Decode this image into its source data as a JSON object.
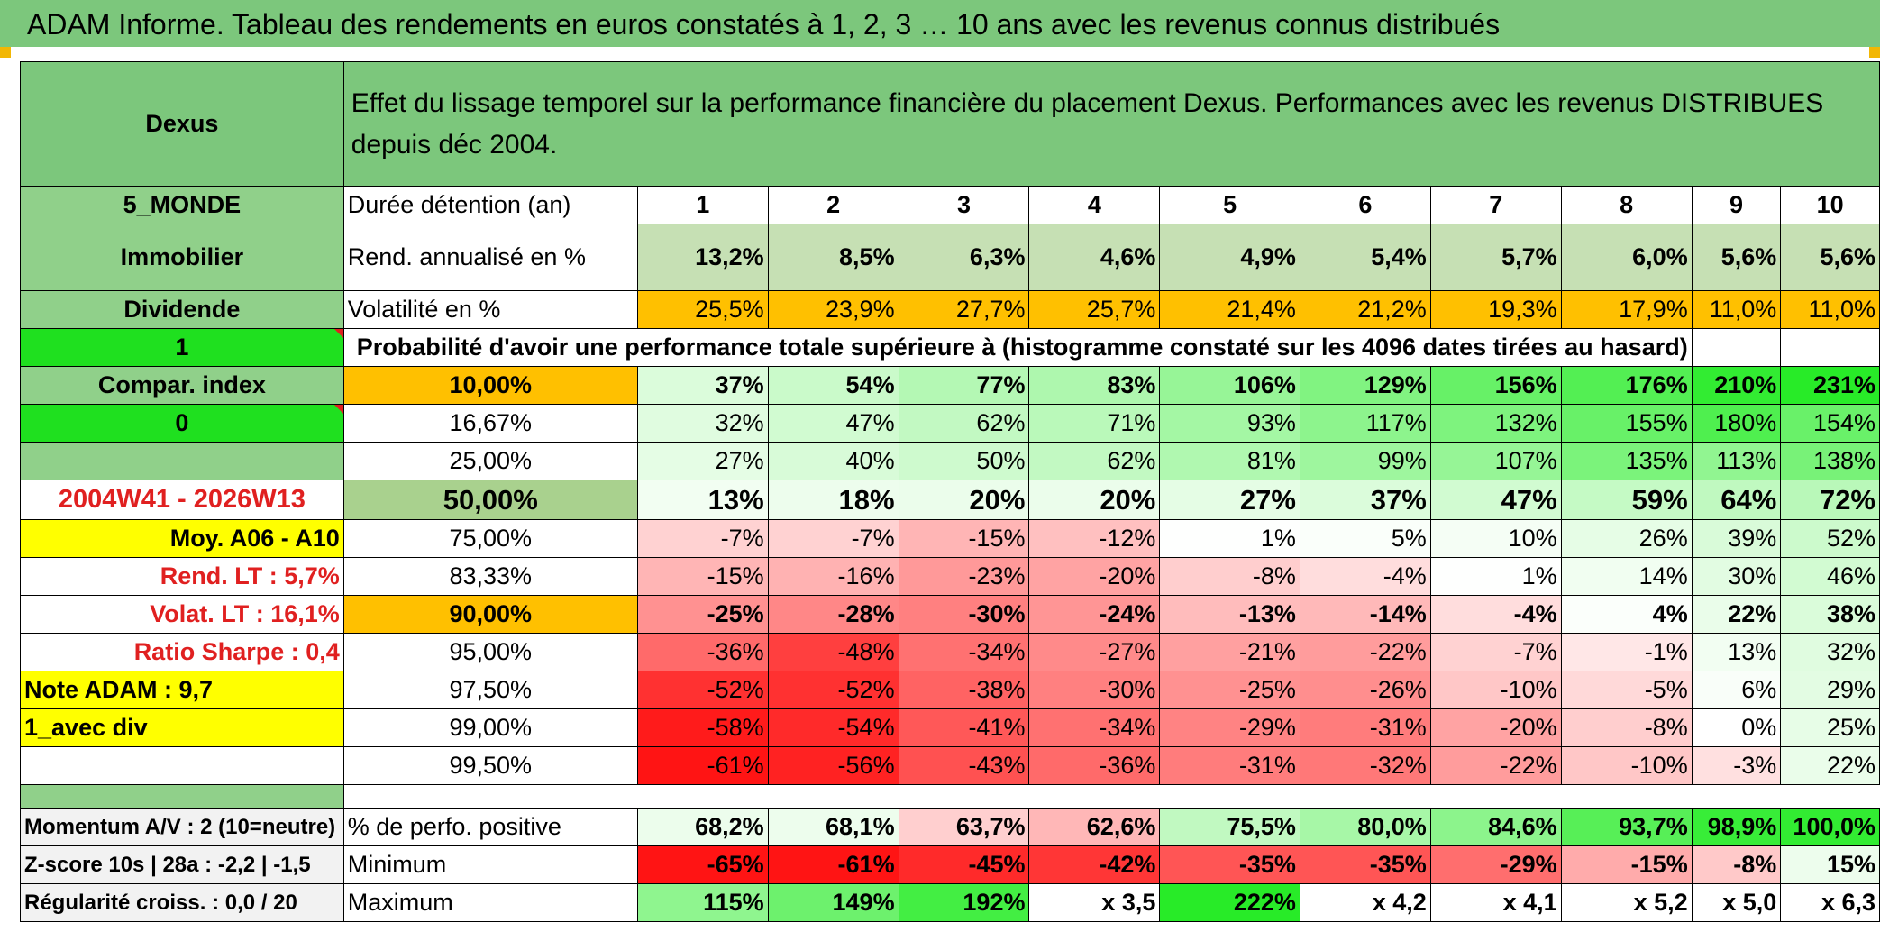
{
  "title": "ADAM Informe. Tableau des rendements en euros constatés à 1, 2, 3 … 10 ans avec les revenus connus distribués",
  "colors": {
    "header_green": "#7cc77c",
    "bright_green": "#1fe01f",
    "orange": "#ffc000",
    "yellow": "#ffff00",
    "red_text": "#e02020"
  },
  "left": {
    "name": "Dexus",
    "zone": "5_MONDE",
    "category": "Immobilier",
    "type": "Dividende",
    "one": "1",
    "compar": "Compar. index",
    "zero": "0",
    "period": "2004W41 - 2026W13",
    "moy": "Moy. A06 - A10",
    "rend_lt": "Rend. LT :   5,7%",
    "volat_lt": "Volat. LT :   16,1%",
    "sharpe": "Ratio Sharpe :   0,4",
    "note": "Note ADAM : 9,7",
    "avec_div": "1_avec div",
    "momentum": "Momentum A/V : 2 (10=neutre)",
    "zscore": "Z-score 10s | 28a : -2,2 | -1,5",
    "regularite": "Régularité croiss. : 0,0 / 20"
  },
  "header_text": "Effet du lissage temporel sur la performance financière du placement Dexus. Performances avec les revenus DISTRIBUES depuis déc 2004.",
  "duration_label": "Durée détention (an)",
  "years": [
    "1",
    "2",
    "3",
    "4",
    "5",
    "6",
    "7",
    "8",
    "9",
    "10"
  ],
  "rend_label": "Rend. annualisé en %",
  "rend": [
    "13,2%",
    "8,5%",
    "6,3%",
    "4,6%",
    "4,9%",
    "5,4%",
    "5,7%",
    "6,0%",
    "5,6%",
    "5,6%"
  ],
  "vol_label": "Volatilité en %",
  "vol": [
    "25,5%",
    "23,9%",
    "27,7%",
    "25,7%",
    "21,4%",
    "21,2%",
    "19,3%",
    "17,9%",
    "11,0%",
    "11,0%"
  ],
  "prob_text": "Probabilité d'avoir une performance totale supérieure à (histogramme constaté sur les 4096 dates tirées au hasard)",
  "percentile_rows": [
    {
      "p": "10,00%",
      "vals": [
        "37%",
        "54%",
        "77%",
        "83%",
        "106%",
        "129%",
        "156%",
        "176%",
        "210%",
        "231%"
      ],
      "nums": [
        37,
        54,
        77,
        83,
        106,
        129,
        156,
        176,
        210,
        231
      ],
      "bold": true
    },
    {
      "p": "16,67%",
      "vals": [
        "32%",
        "47%",
        "62%",
        "71%",
        "93%",
        "117%",
        "132%",
        "155%",
        "180%",
        "154%"
      ],
      "nums": [
        32,
        47,
        62,
        71,
        93,
        117,
        132,
        155,
        180,
        154
      ],
      "bold": false
    },
    {
      "p": "25,00%",
      "vals": [
        "27%",
        "40%",
        "50%",
        "62%",
        "81%",
        "99%",
        "107%",
        "135%",
        "113%",
        "138%"
      ],
      "nums": [
        27,
        40,
        50,
        62,
        81,
        99,
        107,
        135,
        113,
        138
      ],
      "bold": false
    },
    {
      "p": "50,00%",
      "vals": [
        "13%",
        "18%",
        "20%",
        "20%",
        "27%",
        "37%",
        "47%",
        "59%",
        "64%",
        "72%"
      ],
      "nums": [
        13,
        18,
        20,
        20,
        27,
        37,
        47,
        59,
        64,
        72
      ],
      "bold": true,
      "big": true
    },
    {
      "p": "75,00%",
      "vals": [
        "-7%",
        "-7%",
        "-15%",
        "-12%",
        "1%",
        "5%",
        "10%",
        "26%",
        "39%",
        "52%"
      ],
      "nums": [
        -7,
        -7,
        -15,
        -12,
        1,
        5,
        10,
        26,
        39,
        52
      ],
      "bold": false
    },
    {
      "p": "83,33%",
      "vals": [
        "-15%",
        "-16%",
        "-23%",
        "-20%",
        "-8%",
        "-4%",
        "1%",
        "14%",
        "30%",
        "46%"
      ],
      "nums": [
        -15,
        -16,
        -23,
        -20,
        -8,
        -4,
        1,
        14,
        30,
        46
      ],
      "bold": false
    },
    {
      "p": "90,00%",
      "vals": [
        "-25%",
        "-28%",
        "-30%",
        "-24%",
        "-13%",
        "-14%",
        "-4%",
        "4%",
        "22%",
        "38%"
      ],
      "nums": [
        -25,
        -28,
        -30,
        -24,
        -13,
        -14,
        -4,
        4,
        22,
        38
      ],
      "bold": true
    },
    {
      "p": "95,00%",
      "vals": [
        "-36%",
        "-48%",
        "-34%",
        "-27%",
        "-21%",
        "-22%",
        "-7%",
        "-1%",
        "13%",
        "32%"
      ],
      "nums": [
        -36,
        -48,
        -34,
        -27,
        -21,
        -22,
        -7,
        -1,
        13,
        32
      ],
      "bold": false
    },
    {
      "p": "97,50%",
      "vals": [
        "-52%",
        "-52%",
        "-38%",
        "-30%",
        "-25%",
        "-26%",
        "-10%",
        "-5%",
        "6%",
        "29%"
      ],
      "nums": [
        -52,
        -52,
        -38,
        -30,
        -25,
        -26,
        -10,
        -5,
        6,
        29
      ],
      "bold": false
    },
    {
      "p": "99,00%",
      "vals": [
        "-58%",
        "-54%",
        "-41%",
        "-34%",
        "-29%",
        "-31%",
        "-20%",
        "-8%",
        "0%",
        "25%"
      ],
      "nums": [
        -58,
        -54,
        -41,
        -34,
        -29,
        -31,
        -20,
        -8,
        0,
        25
      ],
      "bold": false
    },
    {
      "p": "99,50%",
      "vals": [
        "-61%",
        "-56%",
        "-43%",
        "-36%",
        "-31%",
        "-32%",
        "-22%",
        "-10%",
        "-3%",
        "22%"
      ],
      "nums": [
        -61,
        -56,
        -43,
        -36,
        -31,
        -32,
        -22,
        -10,
        -3,
        22
      ],
      "bold": false
    }
  ],
  "positive_label": "% de perfo. positive",
  "positive": [
    "68,2%",
    "68,1%",
    "63,7%",
    "62,6%",
    "75,5%",
    "80,0%",
    "84,6%",
    "93,7%",
    "98,9%",
    "100,0%"
  ],
  "positive_nums": [
    68.2,
    68.1,
    63.7,
    62.6,
    75.5,
    80.0,
    84.6,
    93.7,
    98.9,
    100.0
  ],
  "min_label": "Minimum",
  "minimum": [
    "-65%",
    "-61%",
    "-45%",
    "-42%",
    "-35%",
    "-35%",
    "-29%",
    "-15%",
    "-8%",
    "15%"
  ],
  "minimum_nums": [
    -65,
    -61,
    -45,
    -42,
    -35,
    -35,
    -29,
    -15,
    -8,
    15
  ],
  "max_label": "Maximum",
  "maximum": [
    "115%",
    "149%",
    "192%",
    "x 3,5",
    "222%",
    "x 4,2",
    "x 4,1",
    "x 5,2",
    "x 5,0",
    "x 6,3"
  ],
  "maximum_nums": [
    115,
    149,
    192,
    null,
    222,
    null,
    null,
    null,
    null,
    null
  ]
}
